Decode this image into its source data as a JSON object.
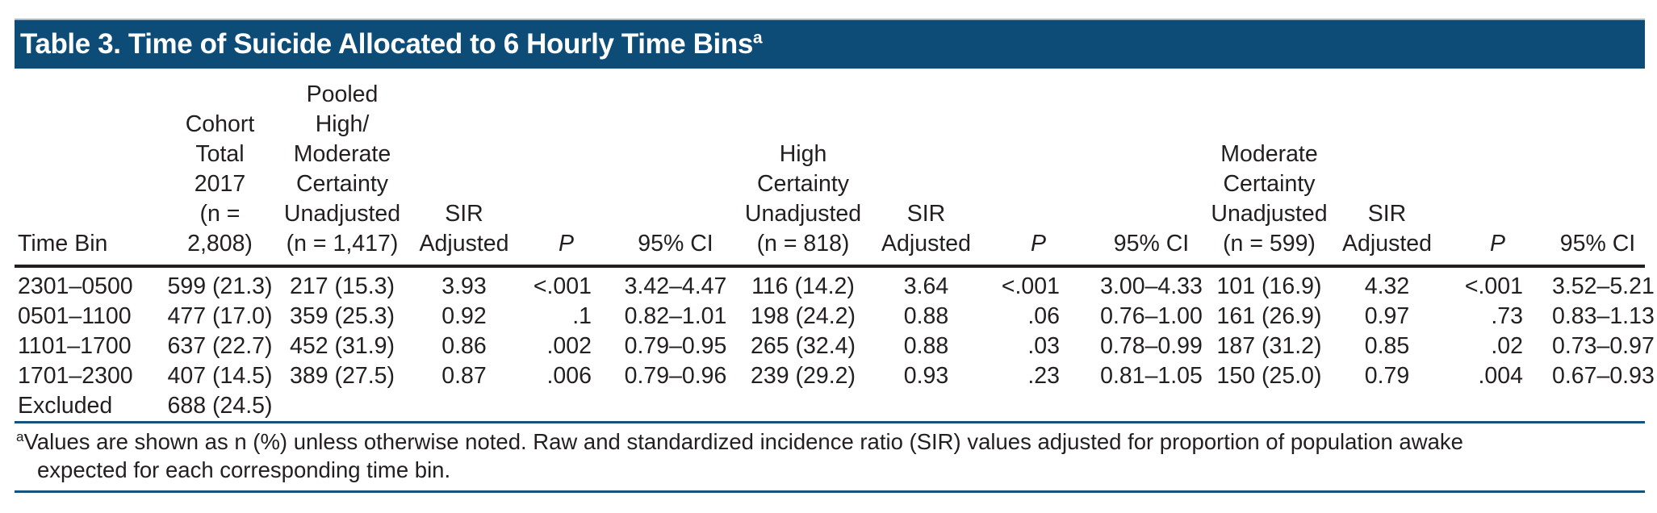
{
  "title": {
    "text": "Table 3. Time of Suicide Allocated to 6 Hourly Time Bins",
    "marker": "a"
  },
  "table": {
    "columns": [
      {
        "id": "time-bin",
        "header_lines": [
          "Time Bin"
        ]
      },
      {
        "id": "cohort-total",
        "header_lines": [
          "Cohort",
          "Total",
          "2017",
          "(n = 2,808)"
        ]
      },
      {
        "id": "pooled-unadjusted",
        "header_lines": [
          "Pooled",
          "High/",
          "Moderate",
          "Certainty",
          "Unadjusted",
          "(n = 1,417)"
        ]
      },
      {
        "id": "pooled-sir-adjusted",
        "header_lines": [
          "SIR",
          "Adjusted"
        ]
      },
      {
        "id": "pooled-p",
        "header_lines": [
          "P"
        ]
      },
      {
        "id": "pooled-ci",
        "header_lines": [
          "95% CI"
        ]
      },
      {
        "id": "high-unadjusted",
        "header_lines": [
          "High",
          "Certainty",
          "Unadjusted",
          "(n = 818)"
        ]
      },
      {
        "id": "high-sir-adjusted",
        "header_lines": [
          "SIR",
          "Adjusted"
        ]
      },
      {
        "id": "high-p",
        "header_lines": [
          "P"
        ]
      },
      {
        "id": "high-ci",
        "header_lines": [
          "95% CI"
        ]
      },
      {
        "id": "moderate-unadjusted",
        "header_lines": [
          "Moderate",
          "Certainty",
          "Unadjusted",
          "(n = 599)"
        ]
      },
      {
        "id": "moderate-sir-adjusted",
        "header_lines": [
          "SIR",
          "Adjusted"
        ]
      },
      {
        "id": "moderate-p",
        "header_lines": [
          "P"
        ]
      },
      {
        "id": "moderate-ci",
        "header_lines": [
          "95% CI"
        ]
      }
    ],
    "rows": [
      [
        "2301–0500",
        "599 (21.3)",
        "217 (15.3)",
        "3.93",
        "<.001",
        "3.42–4.47",
        "116 (14.2)",
        "3.64",
        "<.001",
        "3.00–4.33",
        "101 (16.9)",
        "4.32",
        "<.001",
        "3.52–5.21"
      ],
      [
        "0501–1100",
        "477 (17.0)",
        "359 (25.3)",
        "0.92",
        ".1",
        "0.82–1.01",
        "198 (24.2)",
        "0.88",
        ".06",
        "0.76–1.00",
        "161 (26.9)",
        "0.97",
        ".73",
        "0.83–1.13"
      ],
      [
        "1101–1700",
        "637 (22.7)",
        "452 (31.9)",
        "0.86",
        ".002",
        "0.79–0.95",
        "265 (32.4)",
        "0.88",
        ".03",
        "0.78–0.99",
        "187 (31.2)",
        "0.85",
        ".02",
        "0.73–0.97"
      ],
      [
        "1701–2300",
        "407 (14.5)",
        "389 (27.5)",
        "0.87",
        ".006",
        "0.79–0.96",
        "239 (29.2)",
        "0.93",
        ".23",
        "0.81–1.05",
        "150 (25.0)",
        "0.79",
        ".004",
        "0.67–0.93"
      ],
      [
        "Excluded",
        "688 (24.5)",
        "",
        "",
        "",
        "",
        "",
        "",
        "",
        "",
        "",
        "",
        "",
        ""
      ]
    ]
  },
  "footnote": {
    "marker": "a",
    "lines": [
      "Values are shown as n (%) unless otherwise noted. Raw and standardized incidence ratio (SIR) values adjusted for proportion of population awake",
      "expected for each corresponding time bin."
    ]
  },
  "colors": {
    "header_bar": "#0D4C77",
    "rule_blue": "#15527C",
    "rule_black": "#231F20",
    "text": "#231F20",
    "title_text": "#FFFFFF"
  }
}
